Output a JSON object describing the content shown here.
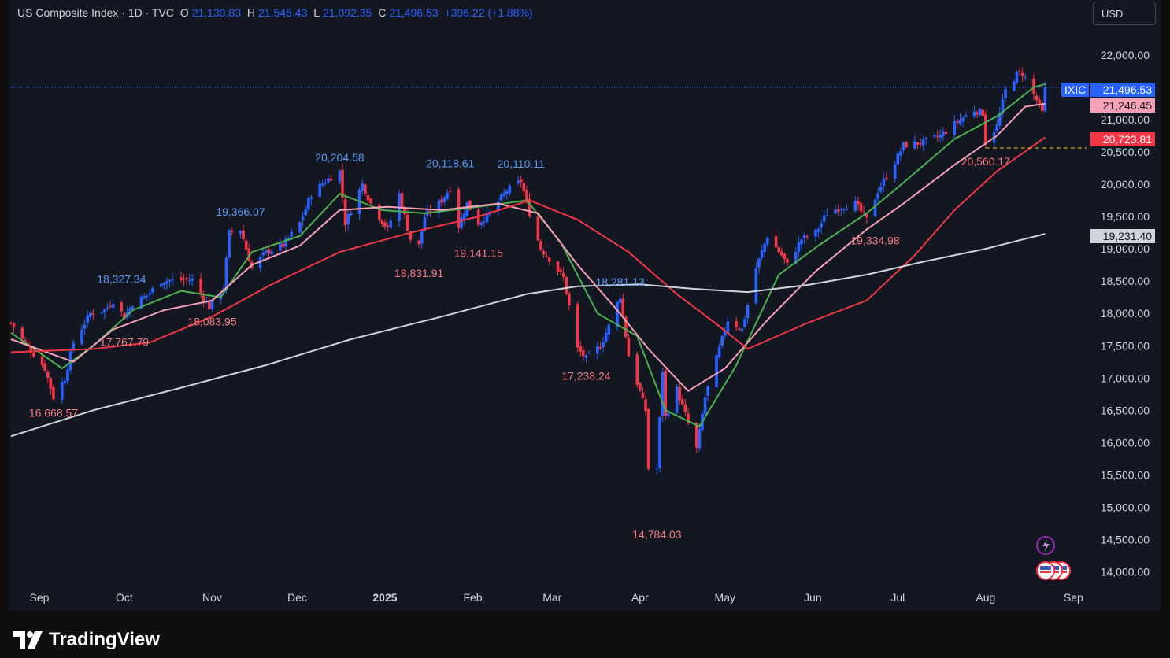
{
  "header": {
    "title": "US Composite Index · 1D · TVC",
    "open_label": "O",
    "open": "21,139.83",
    "high_label": "H",
    "high": "21,545.43",
    "low_label": "L",
    "low": "21,092.35",
    "close_label": "C",
    "close": "21,496.53",
    "change": "+396.22 (+1.88%)"
  },
  "currency_button": "USD",
  "brand": "TradingView",
  "price_badges": {
    "symbol": "IXIC",
    "last": "21,496.53",
    "ma_pink": "21,246.45",
    "ma_red": "20,723.81",
    "ma_white": "19,231.40"
  },
  "colors": {
    "background": "#131722",
    "up": "#2962ff",
    "down": "#f23645",
    "ma_green": "#4caf50",
    "ma_pink": "#f7a1b6",
    "ma_red": "#f23645",
    "ma_white": "#d1d4dc"
  },
  "chart_data": {
    "type": "candlestick",
    "title": "US Composite Index · 1D · TVC",
    "ylim": [
      13850,
      22300
    ],
    "y_ticks": [
      "22,000.00",
      "21,500.00",
      "21,000.00",
      "20,500.00",
      "20,000.00",
      "19,500.00",
      "19,000.00",
      "18,500.00",
      "18,000.00",
      "17,500.00",
      "17,000.00",
      "16,500.00",
      "16,000.00",
      "15,500.00",
      "15,000.00",
      "14,500.00",
      "14,000.00"
    ],
    "y_tick_values": [
      22000,
      21500,
      21000,
      20500,
      20000,
      19500,
      19000,
      18500,
      18000,
      17500,
      17000,
      16500,
      16000,
      15500,
      15000,
      14500,
      14000
    ],
    "x_ticks": [
      "Sep",
      "Oct",
      "Nov",
      "Dec",
      "2025",
      "Feb",
      "Mar",
      "Apr",
      "May",
      "Jun",
      "Jul",
      "Aug",
      "Sep"
    ],
    "x_tick_dates": [
      "2024-09-01",
      "2024-10-01",
      "2024-11-01",
      "2024-12-01",
      "2025-01-01",
      "2025-02-01",
      "2025-03-01",
      "2025-04-01",
      "2025-05-01",
      "2025-06-01",
      "2025-07-01",
      "2025-08-01",
      "2025-09-01"
    ],
    "date_range": [
      "2024-08-22",
      "2025-08-23"
    ],
    "last_close_line": 21496.53,
    "support_line": 20560.17,
    "close_anchors": [
      [
        "2024-08-22",
        17850
      ],
      [
        "2024-08-26",
        17600
      ],
      [
        "2024-09-03",
        17150
      ],
      [
        "2024-09-06",
        16700
      ],
      [
        "2024-09-10",
        17000
      ],
      [
        "2024-09-13",
        17550
      ],
      [
        "2024-09-19",
        18000
      ],
      [
        "2024-09-24",
        18050
      ],
      [
        "2024-09-27",
        18200
      ],
      [
        "2024-10-01",
        17950
      ],
      [
        "2024-10-04",
        18150
      ],
      [
        "2024-10-09",
        18280
      ],
      [
        "2024-10-14",
        18500
      ],
      [
        "2024-10-21",
        18520
      ],
      [
        "2024-10-25",
        18520
      ],
      [
        "2024-10-31",
        18100
      ],
      [
        "2024-11-05",
        18400
      ],
      [
        "2024-11-07",
        19250
      ],
      [
        "2024-11-11",
        19300
      ],
      [
        "2024-11-15",
        18700
      ],
      [
        "2024-11-20",
        18950
      ],
      [
        "2024-11-26",
        19050
      ],
      [
        "2024-12-02",
        19400
      ],
      [
        "2024-12-06",
        19850
      ],
      [
        "2024-12-11",
        20050
      ],
      [
        "2024-12-16",
        20200
      ],
      [
        "2024-12-18",
        19400
      ],
      [
        "2024-12-24",
        20000
      ],
      [
        "2024-12-27",
        19700
      ],
      [
        "2025-01-02",
        19300
      ],
      [
        "2025-01-06",
        19850
      ],
      [
        "2025-01-10",
        19150
      ],
      [
        "2025-01-13",
        19050
      ],
      [
        "2025-01-15",
        19500
      ],
      [
        "2025-01-21",
        19750
      ],
      [
        "2025-01-24",
        19950
      ],
      [
        "2025-01-27",
        19350
      ],
      [
        "2025-01-30",
        19700
      ],
      [
        "2025-02-03",
        19400
      ],
      [
        "2025-02-07",
        19550
      ],
      [
        "2025-02-13",
        19900
      ],
      [
        "2025-02-18",
        20050
      ],
      [
        "2025-02-21",
        19550
      ],
      [
        "2025-02-25",
        19000
      ],
      [
        "2025-02-28",
        18850
      ],
      [
        "2025-03-05",
        18550
      ],
      [
        "2025-03-10",
        17450
      ],
      [
        "2025-03-13",
        17300
      ],
      [
        "2025-03-18",
        17500
      ],
      [
        "2025-03-21",
        17800
      ],
      [
        "2025-03-25",
        18270
      ],
      [
        "2025-03-28",
        17350
      ],
      [
        "2025-04-03",
        16500
      ],
      [
        "2025-04-04",
        15600
      ],
      [
        "2025-04-07",
        15600
      ],
      [
        "2025-04-09",
        17120
      ],
      [
        "2025-04-10",
        16400
      ],
      [
        "2025-04-14",
        16830
      ],
      [
        "2025-04-21",
        15900
      ],
      [
        "2025-04-24",
        16700
      ],
      [
        "2025-04-29",
        17450
      ],
      [
        "2025-05-02",
        17900
      ],
      [
        "2025-05-07",
        17750
      ],
      [
        "2025-05-12",
        18700
      ],
      [
        "2025-05-16",
        19200
      ],
      [
        "2025-05-21",
        18900
      ],
      [
        "2025-05-23",
        18750
      ],
      [
        "2025-05-28",
        19150
      ],
      [
        "2025-06-02",
        19250
      ],
      [
        "2025-06-06",
        19550
      ],
      [
        "2025-06-11",
        19650
      ],
      [
        "2025-06-16",
        19700
      ],
      [
        "2025-06-20",
        19450
      ],
      [
        "2025-06-24",
        19900
      ],
      [
        "2025-06-30",
        20350
      ],
      [
        "2025-07-03",
        20600
      ],
      [
        "2025-07-10",
        20650
      ],
      [
        "2025-07-16",
        20750
      ],
      [
        "2025-07-23",
        21000
      ],
      [
        "2025-07-28",
        21150
      ],
      [
        "2025-07-31",
        21100
      ],
      [
        "2025-08-01",
        20650
      ],
      [
        "2025-08-05",
        20900
      ],
      [
        "2025-08-08",
        21450
      ],
      [
        "2025-08-12",
        21700
      ],
      [
        "2025-08-14",
        21720
      ],
      [
        "2025-08-19",
        21300
      ],
      [
        "2025-08-21",
        21100
      ],
      [
        "2025-08-22",
        21496.53
      ]
    ],
    "moving_averages": [
      {
        "color": "#4caf50",
        "points": [
          [
            "2024-08-22",
            17700
          ],
          [
            "2024-09-09",
            17150
          ],
          [
            "2024-09-20",
            17500
          ],
          [
            "2024-10-04",
            18050
          ],
          [
            "2024-10-21",
            18350
          ],
          [
            "2024-11-04",
            18250
          ],
          [
            "2024-11-15",
            18950
          ],
          [
            "2024-12-02",
            19200
          ],
          [
            "2024-12-16",
            19850
          ],
          [
            "2024-12-31",
            19600
          ],
          [
            "2025-01-15",
            19550
          ],
          [
            "2025-02-03",
            19650
          ],
          [
            "2025-02-20",
            19750
          ],
          [
            "2025-03-04",
            19100
          ],
          [
            "2025-03-17",
            18000
          ],
          [
            "2025-03-31",
            17650
          ],
          [
            "2025-04-10",
            16500
          ],
          [
            "2025-04-22",
            16250
          ],
          [
            "2025-05-05",
            17200
          ],
          [
            "2025-05-20",
            18600
          ],
          [
            "2025-06-03",
            19050
          ],
          [
            "2025-06-20",
            19550
          ],
          [
            "2025-07-01",
            19950
          ],
          [
            "2025-07-21",
            20700
          ],
          [
            "2025-08-05",
            21050
          ],
          [
            "2025-08-18",
            21500
          ],
          [
            "2025-08-22",
            21550
          ]
        ]
      },
      {
        "color": "#f7a1b6",
        "points": [
          [
            "2024-08-22",
            17600
          ],
          [
            "2024-09-13",
            17250
          ],
          [
            "2024-09-27",
            17750
          ],
          [
            "2024-10-15",
            18050
          ],
          [
            "2024-11-01",
            18200
          ],
          [
            "2024-11-15",
            18750
          ],
          [
            "2024-12-02",
            19050
          ],
          [
            "2024-12-16",
            19600
          ],
          [
            "2025-01-02",
            19650
          ],
          [
            "2025-01-21",
            19600
          ],
          [
            "2025-02-10",
            19700
          ],
          [
            "2025-02-24",
            19550
          ],
          [
            "2025-03-10",
            18750
          ],
          [
            "2025-03-24",
            18050
          ],
          [
            "2025-04-04",
            17450
          ],
          [
            "2025-04-18",
            16800
          ],
          [
            "2025-05-01",
            17150
          ],
          [
            "2025-05-16",
            17900
          ],
          [
            "2025-06-02",
            18650
          ],
          [
            "2025-06-20",
            19300
          ],
          [
            "2025-07-03",
            19700
          ],
          [
            "2025-07-21",
            20300
          ],
          [
            "2025-08-05",
            20750
          ],
          [
            "2025-08-15",
            21200
          ],
          [
            "2025-08-22",
            21246.45
          ]
        ]
      },
      {
        "color": "#f23645",
        "points": [
          [
            "2024-08-22",
            17400
          ],
          [
            "2024-09-20",
            17450
          ],
          [
            "2024-10-10",
            17550
          ],
          [
            "2024-11-01",
            17950
          ],
          [
            "2024-11-22",
            18450
          ],
          [
            "2024-12-16",
            18950
          ],
          [
            "2025-01-10",
            19250
          ],
          [
            "2025-02-03",
            19500
          ],
          [
            "2025-02-21",
            19750
          ],
          [
            "2025-03-10",
            19450
          ],
          [
            "2025-03-28",
            18950
          ],
          [
            "2025-04-14",
            18300
          ],
          [
            "2025-04-29",
            17800
          ],
          [
            "2025-05-09",
            17450
          ],
          [
            "2025-05-30",
            17850
          ],
          [
            "2025-06-20",
            18200
          ],
          [
            "2025-07-07",
            18900
          ],
          [
            "2025-07-21",
            19600
          ],
          [
            "2025-08-05",
            20200
          ],
          [
            "2025-08-22",
            20723.81
          ]
        ]
      },
      {
        "color": "#d1d4dc",
        "points": [
          [
            "2024-08-22",
            16100
          ],
          [
            "2024-09-20",
            16500
          ],
          [
            "2024-10-21",
            16850
          ],
          [
            "2024-11-20",
            17200
          ],
          [
            "2024-12-20",
            17600
          ],
          [
            "2025-01-21",
            17950
          ],
          [
            "2025-02-20",
            18300
          ],
          [
            "2025-03-10",
            18420
          ],
          [
            "2025-04-01",
            18450
          ],
          [
            "2025-04-20",
            18380
          ],
          [
            "2025-05-09",
            18330
          ],
          [
            "2025-05-30",
            18440
          ],
          [
            "2025-06-20",
            18600
          ],
          [
            "2025-07-10",
            18800
          ],
          [
            "2025-08-01",
            19000
          ],
          [
            "2025-08-22",
            19231.4
          ]
        ]
      }
    ],
    "annotations": [
      {
        "text": "16,668.57",
        "date": "2024-09-06",
        "price": 16668.57,
        "kind": "low"
      },
      {
        "text": "18,327.34",
        "date": "2024-09-30",
        "price": 18327.34,
        "kind": "high"
      },
      {
        "text": "17,767.79",
        "date": "2024-10-01",
        "price": 17767.79,
        "kind": "low"
      },
      {
        "text": "19,366.07",
        "date": "2024-11-11",
        "price": 19366.07,
        "kind": "high"
      },
      {
        "text": "18,083.95",
        "date": "2024-11-01",
        "price": 18083.95,
        "kind": "low"
      },
      {
        "text": "20,204.58",
        "date": "2024-12-16",
        "price": 20204.58,
        "kind": "high"
      },
      {
        "text": "18,831.91",
        "date": "2025-01-13",
        "price": 18831.91,
        "kind": "low"
      },
      {
        "text": "20,118.61",
        "date": "2025-01-24",
        "price": 20118.61,
        "kind": "high"
      },
      {
        "text": "19,141.15",
        "date": "2025-02-03",
        "price": 19141.15,
        "kind": "low"
      },
      {
        "text": "20,110.11",
        "date": "2025-02-18",
        "price": 20110.11,
        "kind": "high"
      },
      {
        "text": "17,238.24",
        "date": "2025-03-13",
        "price": 17238.24,
        "kind": "low"
      },
      {
        "text": "18,281.13",
        "date": "2025-03-25",
        "price": 18281.13,
        "kind": "high"
      },
      {
        "text": "14,784.03",
        "date": "2025-04-07",
        "price": 14784.03,
        "kind": "low"
      },
      {
        "text": "19,334.98",
        "date": "2025-06-23",
        "price": 19334.98,
        "kind": "low"
      },
      {
        "text": "20,560.17",
        "date": "2025-08-01",
        "price": 20560.17,
        "kind": "low"
      }
    ]
  }
}
